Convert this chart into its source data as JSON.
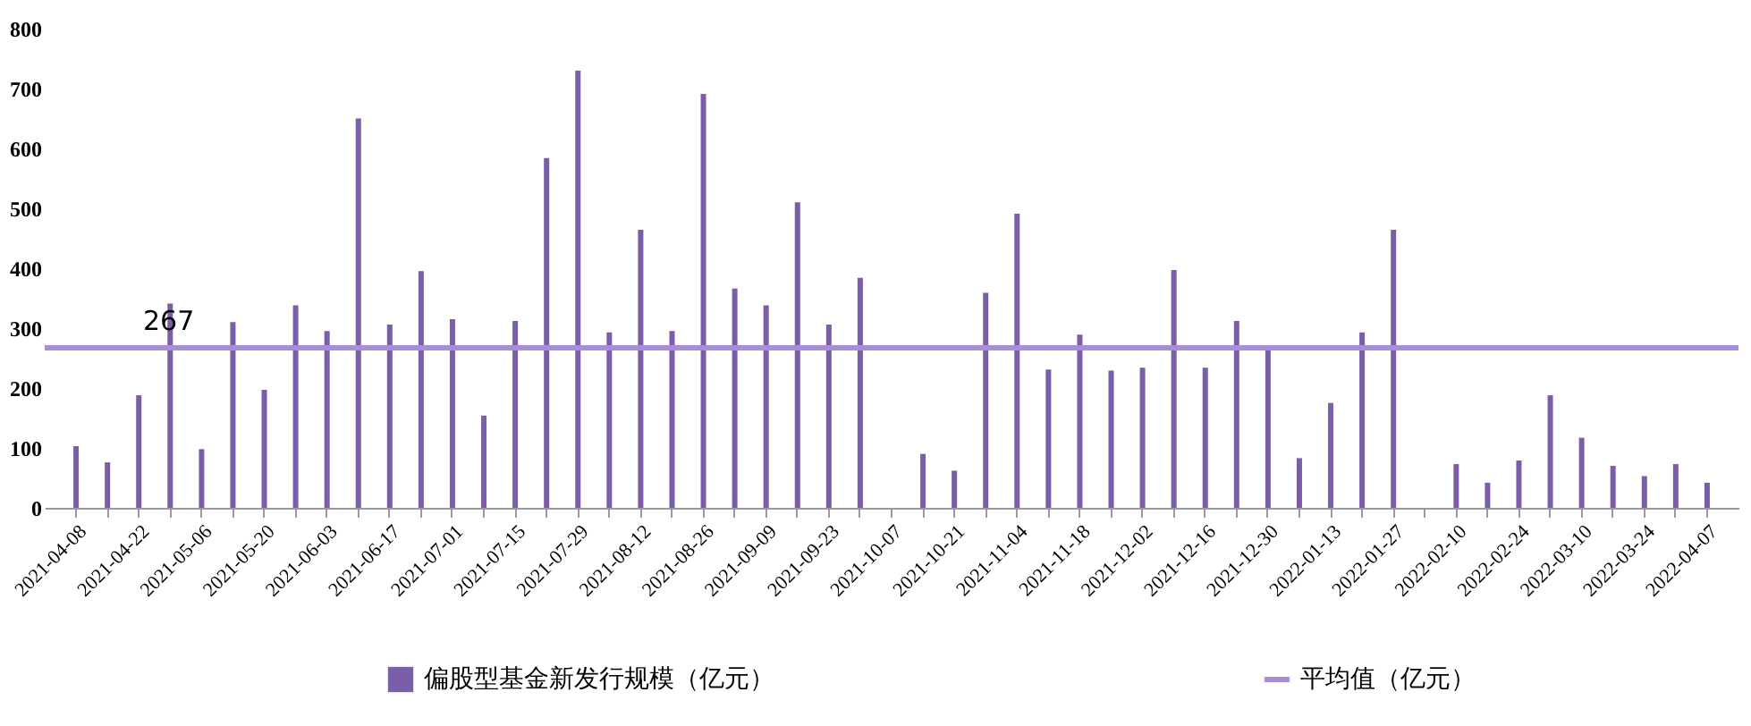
{
  "chart_data": {
    "type": "bar",
    "categories": [
      "2021-04-08",
      null,
      "2021-04-22",
      null,
      "2021-05-06",
      null,
      "2021-05-20",
      null,
      "2021-06-03",
      null,
      "2021-06-17",
      null,
      "2021-07-01",
      null,
      "2021-07-15",
      null,
      "2021-07-29",
      null,
      "2021-08-12",
      null,
      "2021-08-26",
      null,
      "2021-09-09",
      null,
      "2021-09-23",
      null,
      "2021-10-07",
      null,
      "2021-10-21",
      null,
      "2021-11-04",
      null,
      "2021-11-18",
      null,
      "2021-12-02",
      null,
      "2021-12-16",
      null,
      "2021-12-30",
      null,
      "2022-01-13",
      null,
      "2022-01-27",
      null,
      "2022-02-10",
      null,
      "2022-02-24",
      null,
      "2022-03-10",
      null,
      "2022-03-24",
      null,
      "2022-04-07"
    ],
    "series": [
      {
        "name": "偏股型基金新发行规模（亿元）",
        "color": "#7b5ea7",
        "values": [
          103,
          76,
          188,
          341,
          98,
          310,
          197,
          338,
          295,
          650,
          306,
          395,
          315,
          154,
          312,
          584,
          730,
          293,
          464,
          295,
          691,
          366,
          338,
          510,
          306,
          384,
          null,
          90,
          62,
          359,
          491,
          231,
          289,
          229,
          234,
          397,
          234,
          312,
          263,
          83,
          175,
          293,
          464,
          null,
          73,
          42,
          79,
          188,
          117,
          70,
          53,
          73,
          42
        ]
      }
    ],
    "ylim": [
      0,
      800
    ],
    "yticks": [
      0,
      100,
      200,
      300,
      400,
      500,
      600,
      700,
      800
    ],
    "ref_lines": [
      {
        "axis": "y",
        "value": 267,
        "label": "平均值（亿元）",
        "color": "#a88ddb"
      }
    ],
    "annotations": [
      {
        "text": "267",
        "y": 267
      }
    ],
    "legend": "bottom",
    "grid": false
  }
}
